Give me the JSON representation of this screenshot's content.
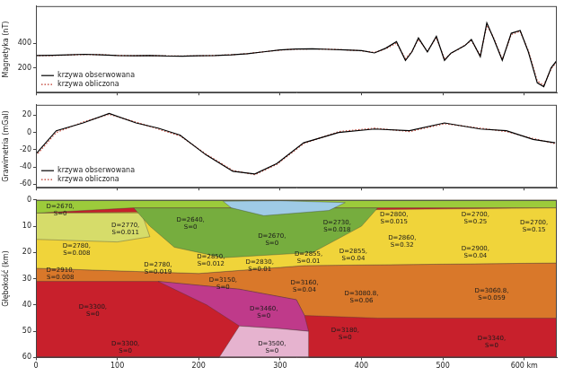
{
  "chart_data": [
    {
      "type": "line",
      "y_label": "Magnetyka (nT)",
      "x": [
        0,
        20,
        40,
        60,
        80,
        100,
        120,
        140,
        160,
        180,
        200,
        220,
        240,
        260,
        280,
        300,
        320,
        340,
        360,
        380,
        400,
        416,
        430,
        443,
        454,
        462,
        470,
        481,
        492,
        502,
        510,
        519,
        527,
        535,
        546,
        554,
        562,
        573,
        584,
        595,
        605,
        616,
        624,
        633,
        640
      ],
      "series": [
        {
          "name": "krzywa obserwowana",
          "color": "#000000",
          "line_style": "solid",
          "values": [
            300,
            302,
            305,
            310,
            306,
            300,
            298,
            300,
            296,
            295,
            298,
            300,
            305,
            315,
            330,
            345,
            352,
            355,
            350,
            345,
            340,
            321,
            360,
            412,
            261,
            330,
            442,
            330,
            455,
            261,
            320,
            352,
            380,
            430,
            291,
            564,
            442,
            261,
            480,
            503,
            330,
            79,
            48,
            200,
            260
          ]
        },
        {
          "name": "krzywa obliczona",
          "color": "#c0392b",
          "line_style": "dotted",
          "values": [
            300,
            300,
            304,
            308,
            307,
            301,
            298,
            299,
            297,
            296,
            297,
            301,
            306,
            316,
            331,
            344,
            351,
            354,
            351,
            346,
            338,
            325,
            355,
            400,
            275,
            335,
            430,
            335,
            445,
            270,
            318,
            350,
            385,
            420,
            300,
            545,
            450,
            270,
            470,
            495,
            340,
            95,
            60,
            190,
            250
          ]
        }
      ],
      "xlim": [
        0,
        640
      ],
      "xticks": [
        0,
        100,
        200,
        300,
        400,
        500,
        600
      ],
      "ylim": [
        0,
        700
      ],
      "yticks": [
        200,
        400
      ],
      "grid": false,
      "legend": "lower left",
      "tick_labels": "y"
    },
    {
      "type": "line",
      "y_label": "Grawimetria (mGal)",
      "x": [
        0,
        25,
        58,
        90,
        123,
        150,
        177,
        209,
        242,
        269,
        296,
        329,
        372,
        416,
        459,
        502,
        546,
        578,
        611,
        638
      ],
      "series": [
        {
          "name": "krzywa obserwowana",
          "color": "#000000",
          "line_style": "solid",
          "values": [
            -25,
            2,
            11,
            22,
            11,
            5,
            -3,
            -26,
            -45,
            -48,
            -36,
            -12,
            0,
            4,
            2,
            11,
            4,
            2,
            -8,
            -12
          ]
        },
        {
          "name": "krzywa obliczona",
          "color": "#c0392b",
          "line_style": "dotted",
          "values": [
            -27,
            0,
            12,
            21,
            12,
            4,
            -4,
            -25,
            -44,
            -49,
            -37,
            -13,
            1,
            5,
            1,
            10,
            5,
            1,
            -7,
            -13
          ]
        }
      ],
      "xlim": [
        0,
        640
      ],
      "xticks": [
        0,
        100,
        200,
        300,
        400,
        500,
        600
      ],
      "ylim": [
        -64,
        32
      ],
      "yticks": [
        -60,
        -40,
        -20,
        0,
        20
      ],
      "grid": false,
      "legend": "lower left",
      "tick_labels": "y"
    },
    {
      "type": "section",
      "y_label": "Głębokość (km)",
      "xlim": [
        0,
        640
      ],
      "xticks": [
        0,
        100,
        200,
        300,
        400,
        500,
        {
          "value": 600,
          "label": "600 km"
        }
      ],
      "ylim": [
        0,
        60
      ],
      "yticks": [
        0,
        10,
        20,
        30,
        40,
        50,
        60
      ],
      "grid": false,
      "tick_labels": true,
      "bodies": [
        {
          "color": "#c8202c",
          "polygon": [
            [
              0,
              0
            ],
            [
              640,
              0
            ],
            [
              640,
              60
            ],
            [
              0,
              60
            ]
          ]
        },
        {
          "color": "#d9782a",
          "polygon": [
            [
              0,
              26
            ],
            [
              200,
              28
            ],
            [
              330,
              25
            ],
            [
              640,
              24
            ],
            [
              640,
              45
            ],
            [
              420,
              45
            ],
            [
              330,
              44
            ],
            [
              320,
              38
            ],
            [
              250,
              34
            ],
            [
              150,
              31
            ],
            [
              0,
              31
            ]
          ]
        },
        {
          "color": "#bf3a8a",
          "polygon": [
            [
              150,
              31
            ],
            [
              250,
              34
            ],
            [
              320,
              38
            ],
            [
              330,
              44
            ],
            [
              335,
              50
            ],
            [
              300,
              49
            ],
            [
              250,
              48
            ],
            [
              210,
              40
            ]
          ]
        },
        {
          "color": "#e6b3cf",
          "polygon": [
            [
              250,
              48
            ],
            [
              300,
              49
            ],
            [
              335,
              50
            ],
            [
              335,
              60
            ],
            [
              225,
              60
            ]
          ]
        },
        {
          "color": "#f0d43a",
          "polygon": [
            [
              0,
              5
            ],
            [
              640,
              3
            ],
            [
              640,
              24
            ],
            [
              330,
              25
            ],
            [
              200,
              28
            ],
            [
              0,
              26
            ]
          ]
        },
        {
          "color": "#d6dc6a",
          "polygon": [
            [
              0,
              5
            ],
            [
              130,
              5
            ],
            [
              140,
              14
            ],
            [
              100,
              16
            ],
            [
              0,
              15
            ]
          ]
        },
        {
          "color": "#76ad3e",
          "polygon": [
            [
              120,
              3
            ],
            [
              420,
              3
            ],
            [
              400,
              10
            ],
            [
              340,
              20
            ],
            [
              230,
              22
            ],
            [
              170,
              18
            ],
            [
              140,
              10
            ]
          ]
        },
        {
          "color": "#9ccb3b",
          "polygon": [
            [
              0,
              0
            ],
            [
              640,
              0
            ],
            [
              640,
              3
            ],
            [
              420,
              3
            ],
            [
              120,
              3
            ],
            [
              0,
              5
            ]
          ]
        },
        {
          "color": "#9fcbe6",
          "polygon": [
            [
              230,
              0.5
            ],
            [
              300,
              0.3
            ],
            [
              380,
              1
            ],
            [
              360,
              4
            ],
            [
              280,
              6
            ],
            [
              240,
              3
            ]
          ]
        }
      ],
      "labels": [
        {
          "text": "D=2670, S=0",
          "x": 30,
          "depth": 4
        },
        {
          "text": "D=2770, S=0.011",
          "x": 110,
          "depth": 11
        },
        {
          "text": "D=2780, S=0.008",
          "x": 50,
          "depth": 19
        },
        {
          "text": "D=2780, S=0.019",
          "x": 150,
          "depth": 26
        },
        {
          "text": "D=2910, S=0.008",
          "x": 30,
          "depth": 28
        },
        {
          "text": "D=2640, S=0",
          "x": 190,
          "depth": 9
        },
        {
          "text": "D=2670, S=0",
          "x": 290,
          "depth": 15
        },
        {
          "text": "D=2850, S=0.012",
          "x": 215,
          "depth": 23
        },
        {
          "text": "D=2830, S=0.01",
          "x": 275,
          "depth": 25
        },
        {
          "text": "D=2855, S=0.01",
          "x": 335,
          "depth": 22
        },
        {
          "text": "D=2855, S=0.04",
          "x": 390,
          "depth": 21
        },
        {
          "text": "D=2730, S=0.018",
          "x": 370,
          "depth": 10
        },
        {
          "text": "D=2860, S=0.32",
          "x": 450,
          "depth": 16
        },
        {
          "text": "D=2800, S=0.015",
          "x": 440,
          "depth": 7
        },
        {
          "text": "D=2900, S=0.04",
          "x": 540,
          "depth": 20
        },
        {
          "text": "D=2700, S=0.25",
          "x": 540,
          "depth": 7
        },
        {
          "text": "D=2700, S=0.15",
          "x": 612,
          "depth": 10
        },
        {
          "text": "D=3150, S=0",
          "x": 230,
          "depth": 32
        },
        {
          "text": "D=3160, S=0.04",
          "x": 330,
          "depth": 33
        },
        {
          "text": "D=3080.8, S=0.06",
          "x": 400,
          "depth": 37
        },
        {
          "text": "D=3060.8, S=0.059",
          "x": 560,
          "depth": 36
        },
        {
          "text": "D=3460, S=0",
          "x": 280,
          "depth": 43
        },
        {
          "text": "D=3500, S=0",
          "x": 290,
          "depth": 56
        },
        {
          "text": "D=3300, S=0",
          "x": 70,
          "depth": 42
        },
        {
          "text": "D=3300, S=0",
          "x": 110,
          "depth": 56
        },
        {
          "text": "D=3180, S=0",
          "x": 380,
          "depth": 51
        },
        {
          "text": "D=3340, S=0",
          "x": 560,
          "depth": 54
        }
      ]
    }
  ]
}
